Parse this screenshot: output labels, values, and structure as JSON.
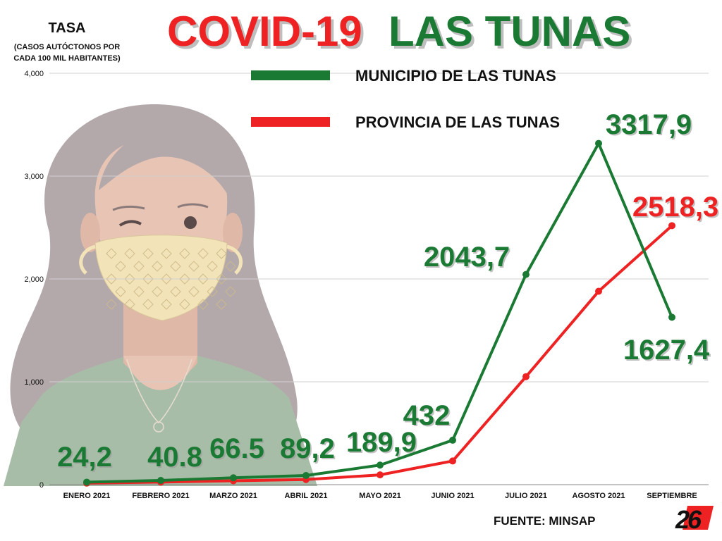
{
  "title": {
    "part1": "COVID-19",
    "part2": "LAS TUNAS"
  },
  "y_axis": {
    "label": "TASA",
    "sublabel_line1": "(CASOS AUTÓCTONOS POR",
    "sublabel_line2": "CADA 100 MIL HABITANTES)"
  },
  "source": "FUENTE: MINSAP",
  "logo_text": "26",
  "colors": {
    "green": "#1a7a33",
    "red": "#ee2222",
    "grid": "#d0d0d0",
    "hair": "#b3a9ab",
    "skin": "#e8c4b4",
    "shirt": "#a8bda8",
    "mask": "#f3e3b8"
  },
  "chart_data": {
    "type": "line",
    "categories": [
      "ENERO 2021",
      "FEBRERO 2021",
      "MARZO 2021",
      "ABRIL 2021",
      "MAYO 2021",
      "JUNIO 2021",
      "JULIO 2021",
      "AGOSTO 2021",
      "SEPTIEMBRE"
    ],
    "y_ticks": [
      "0",
      "1,000",
      "2,000",
      "3,000",
      "4,000"
    ],
    "ylim": [
      0,
      4000
    ],
    "grid": true,
    "legend_position": "top-right",
    "series": [
      {
        "name": "MUNICIPIO DE LAS TUNAS",
        "color": "#1a7a33",
        "values": [
          24.2,
          40.8,
          66.5,
          89.2,
          189.9,
          432,
          2043.7,
          3317.9,
          1627.4
        ],
        "labels": [
          "24,2",
          "40.8",
          "66.5",
          "89,2",
          "189,9",
          "432",
          "2043,7",
          "3317,9",
          "1627,4"
        ]
      },
      {
        "name": "PROVINCIA DE LAS TUNAS",
        "color": "#ee2222",
        "values": [
          15,
          25,
          38,
          50,
          95,
          230,
          1050,
          1880,
          2518.3
        ],
        "labels": [
          "",
          "",
          "",
          "",
          "",
          "",
          "",
          "",
          "2518,3"
        ]
      }
    ]
  }
}
